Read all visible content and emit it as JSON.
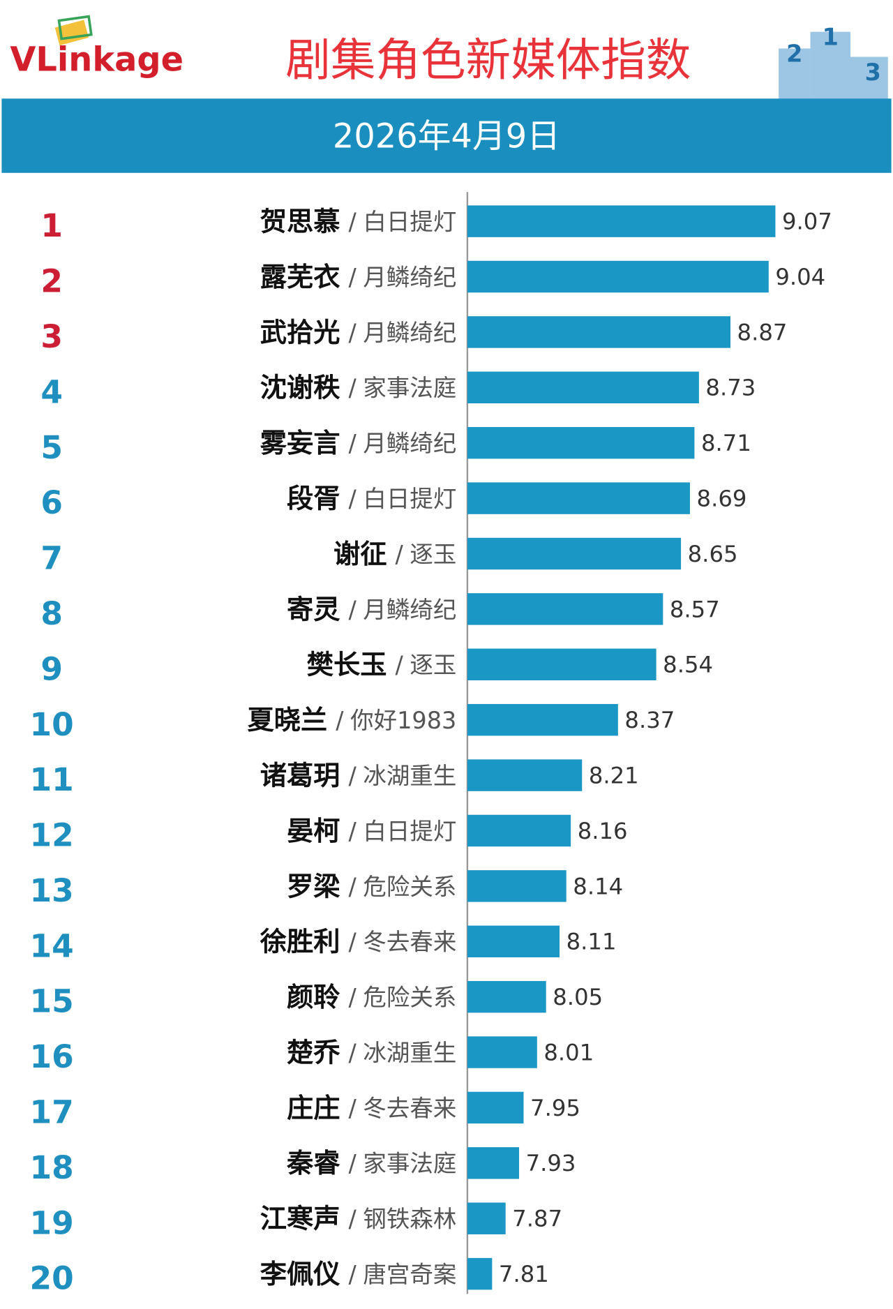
{
  "chart_data": {
    "type": "bar",
    "orientation": "horizontal",
    "logo": "VLinkage",
    "title": "剧集角色新媒体指数",
    "subtitle": "2026年4月9日",
    "podium_labels": [
      2,
      1,
      3
    ],
    "separator": "/",
    "ranks": [
      1,
      2,
      3,
      4,
      5,
      6,
      7,
      8,
      9,
      10,
      11,
      12,
      13,
      14,
      15,
      16,
      17,
      18,
      19,
      20
    ],
    "rank_colors": [
      "#cc1f36",
      "#cc1f36",
      "#cc1f36",
      "#1f8fc0",
      "#1f8fc0",
      "#1f8fc0",
      "#1f8fc0",
      "#1f8fc0",
      "#1f8fc0",
      "#1f8fc0",
      "#1f8fc0",
      "#1f8fc0",
      "#1f8fc0",
      "#1f8fc0",
      "#1f8fc0",
      "#1f8fc0",
      "#1f8fc0",
      "#1f8fc0",
      "#1f8fc0",
      "#1f8fc0"
    ],
    "categories": [
      "贺思慕",
      "露芜衣",
      "武拾光",
      "沈谢秩",
      "雾妄言",
      "段胥",
      "谢征",
      "寄灵",
      "樊长玉",
      "夏晓兰",
      "诸葛玥",
      "晏柯",
      "罗梁",
      "徐胜利",
      "颜聆",
      "楚乔",
      "庄庄",
      "秦睿",
      "江寒声",
      "李佩仪"
    ],
    "dramas": [
      "白日提灯",
      "月鳞绮纪",
      "月鳞绮纪",
      "家事法庭",
      "月鳞绮纪",
      "白日提灯",
      "逐玉",
      "月鳞绮纪",
      "逐玉",
      "你好1983",
      "冰湖重生",
      "白日提灯",
      "危险关系",
      "冬去春来",
      "危险关系",
      "冰湖重生",
      "冬去春来",
      "家事法庭",
      "钢铁森林",
      "唐宫奇案"
    ],
    "values": [
      9.07,
      9.04,
      8.87,
      8.73,
      8.71,
      8.69,
      8.65,
      8.57,
      8.54,
      8.37,
      8.21,
      8.16,
      8.14,
      8.11,
      8.05,
      8.01,
      7.95,
      7.93,
      7.87,
      7.81
    ],
    "color": "#1a97c4",
    "xlim": [
      7.7,
      9.4
    ]
  }
}
